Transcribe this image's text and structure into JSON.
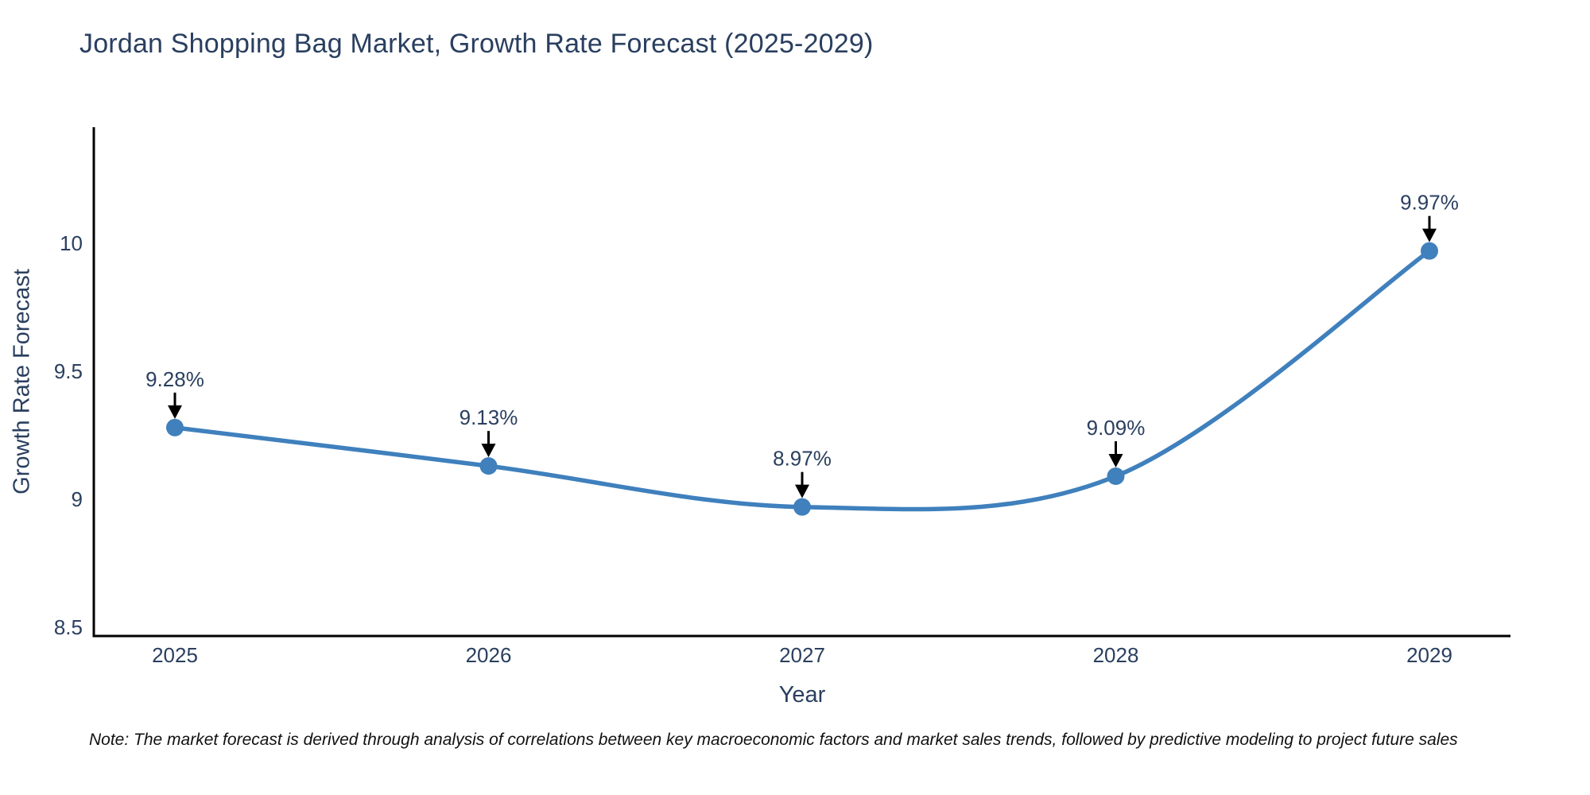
{
  "chart_data": {
    "type": "line",
    "title": "Jordan Shopping Bag Market, Growth Rate Forecast (2025-2029)",
    "xlabel": "Year",
    "ylabel": "Growth Rate Forecast",
    "categories": [
      "2025",
      "2026",
      "2027",
      "2028",
      "2029"
    ],
    "values": [
      9.28,
      9.13,
      8.97,
      9.09,
      9.97
    ],
    "point_labels": [
      "9.28%",
      "9.13%",
      "8.97%",
      "9.09%",
      "9.97%"
    ],
    "yticks": [
      8.5,
      9,
      9.5,
      10
    ],
    "ytick_labels": [
      "8.5",
      "9",
      "9.5",
      "10"
    ],
    "ylim": [
      8.47,
      10.45
    ],
    "grid": false,
    "legend": "none",
    "line_shape": "spline",
    "colors": {
      "line": "#3f80bd",
      "marker": "#3f80bd",
      "axis": "#000000",
      "text": "#2a3f5f",
      "arrow": "#000000",
      "background": "#ffffff"
    },
    "note": "Note: The market forecast is derived through analysis of correlations between key macroeconomic factors and market sales trends, followed by predictive modeling to project future sales"
  }
}
